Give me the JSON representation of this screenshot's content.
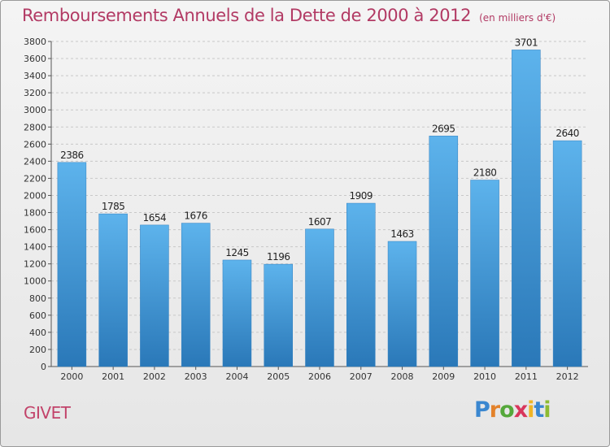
{
  "header": {
    "title": "Remboursements Annuels de la Dette de 2000 à 2012",
    "unit": "(en milliers d'€)"
  },
  "footer": {
    "commune": "GIVET",
    "logo_text": "Proxiti"
  },
  "colors": {
    "title": "#b23a64",
    "bar_top": "#5db3ec",
    "bar_bottom": "#2a78b8",
    "grid": "#c8c8c8"
  },
  "chart_data": {
    "type": "bar",
    "title": "Remboursements Annuels de la Dette de 2000 à 2012",
    "xlabel": "",
    "ylabel": "",
    "categories": [
      "2000",
      "2001",
      "2002",
      "2003",
      "2004",
      "2005",
      "2006",
      "2007",
      "2008",
      "2009",
      "2010",
      "2011",
      "2012"
    ],
    "values": [
      2386,
      1785,
      1654,
      1676,
      1245,
      1196,
      1607,
      1909,
      1463,
      2695,
      2180,
      3701,
      2640
    ],
    "ylim": [
      0,
      3800
    ],
    "ytick_step": 200,
    "grid": "horizontal dashed",
    "data_labels": true,
    "legend": "none"
  }
}
